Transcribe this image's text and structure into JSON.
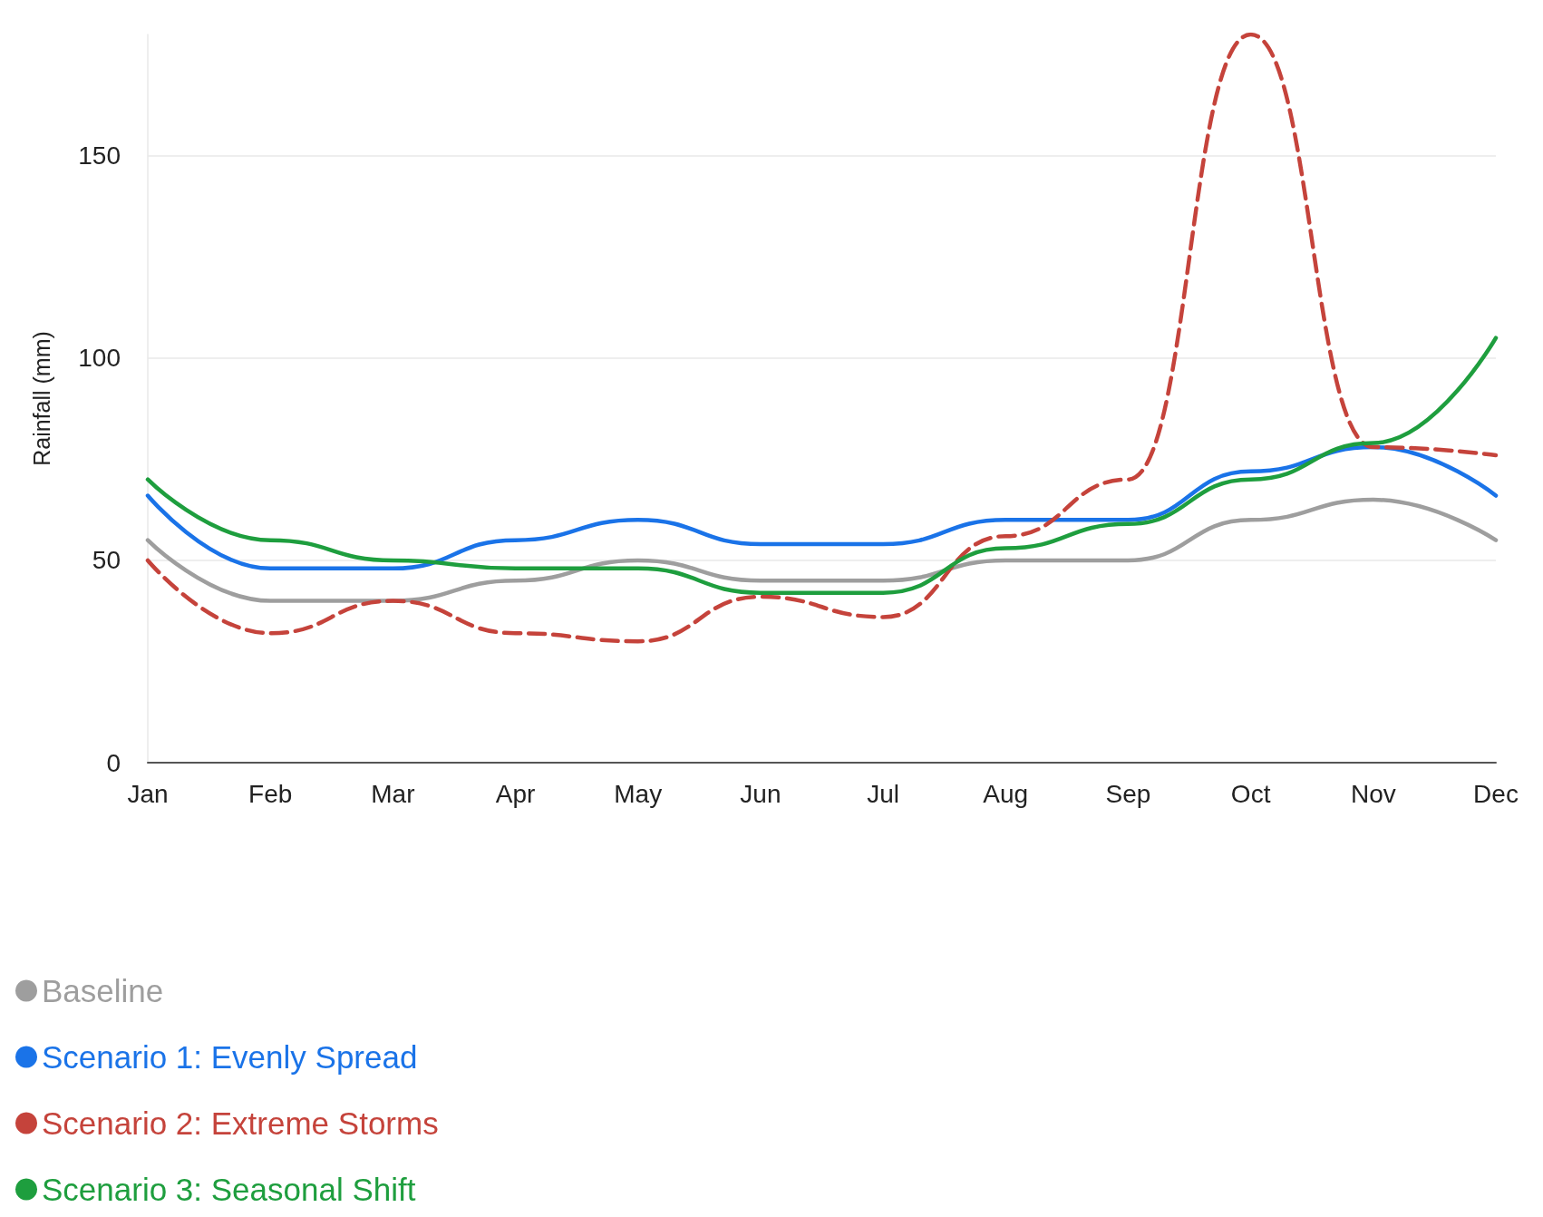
{
  "chart_data": {
    "type": "line",
    "ylabel": "Rainfall (mm)",
    "categories": [
      "Jan",
      "Feb",
      "Mar",
      "Apr",
      "May",
      "Jun",
      "Jul",
      "Aug",
      "Sep",
      "Oct",
      "Nov",
      "Dec"
    ],
    "series": [
      {
        "name": "Baseline",
        "color": "#9e9e9e",
        "values": [
          55,
          40,
          40,
          45,
          50,
          45,
          45,
          50,
          50,
          60,
          65,
          55
        ]
      },
      {
        "name": "Scenario 1: Evenly Spread",
        "color": "#1a73e8",
        "values": [
          66,
          48,
          48,
          55,
          60,
          54,
          54,
          60,
          60,
          72,
          78,
          66
        ]
      },
      {
        "name": "Scenario 2: Extreme Storms",
        "color": "#c5433b",
        "line_style": "dashed",
        "values": [
          50,
          32,
          40,
          32,
          30,
          41,
          36,
          56,
          70,
          180,
          78,
          76
        ]
      },
      {
        "name": "Scenario 3: Seasonal Shift",
        "color": "#1e9e3e",
        "values": [
          70,
          55,
          50,
          48,
          48,
          42,
          42,
          53,
          59,
          70,
          79,
          105
        ]
      }
    ],
    "ylim": [
      0,
      180
    ],
    "yticks": [
      0,
      50,
      100,
      150
    ],
    "grid": "y",
    "legend": "bottom left",
    "marker": "none",
    "line_style": "solid"
  }
}
